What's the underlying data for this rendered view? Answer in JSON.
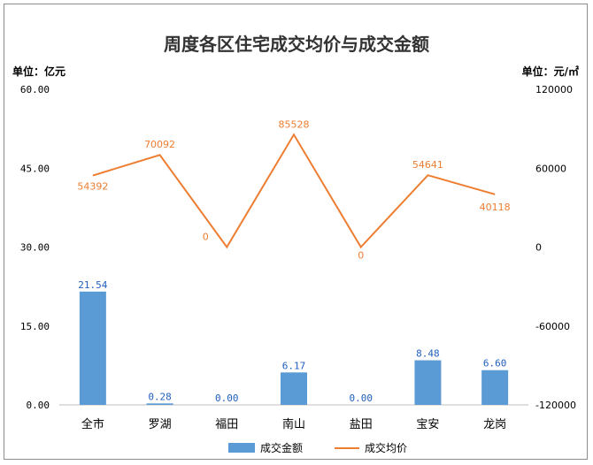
{
  "chart_data": {
    "type": "bar",
    "title": "周度各区住宅成交均价与成交金额",
    "left_unit": "单位：亿元",
    "right_unit": "单位：元/㎡",
    "categories": [
      "全市",
      "罗湖",
      "福田",
      "南山",
      "盐田",
      "宝安",
      "龙岗"
    ],
    "bar_series": {
      "name": "成交金额",
      "color": "#5b9bd5",
      "values": [
        21.54,
        0.28,
        0.0,
        6.17,
        0.0,
        8.48,
        6.6
      ],
      "labels": [
        "21.54",
        "0.28",
        "0.00",
        "6.17",
        "0.00",
        "8.48",
        "6.60"
      ]
    },
    "line_series": {
      "name": "成交均价",
      "color": "#ed7d31",
      "values": [
        54392,
        70092,
        0,
        85528,
        0,
        54641,
        40118
      ],
      "labels": [
        "54392",
        "70092",
        "0",
        "85528",
        "0",
        "54641",
        "40118"
      ]
    },
    "y_left": {
      "min": 0,
      "max": 60,
      "ticks": [
        0,
        15,
        30,
        45,
        60
      ],
      "tick_labels": [
        "0.00",
        "15.00",
        "30.00",
        "45.00",
        "60.00"
      ]
    },
    "y_right": {
      "min": -120000,
      "max": 120000,
      "ticks": [
        -120000,
        -60000,
        0,
        60000,
        120000
      ],
      "tick_labels": [
        "-120000",
        "-60000",
        "0",
        "60000",
        "120000"
      ]
    },
    "grid": false,
    "legend_position": "bottom"
  }
}
